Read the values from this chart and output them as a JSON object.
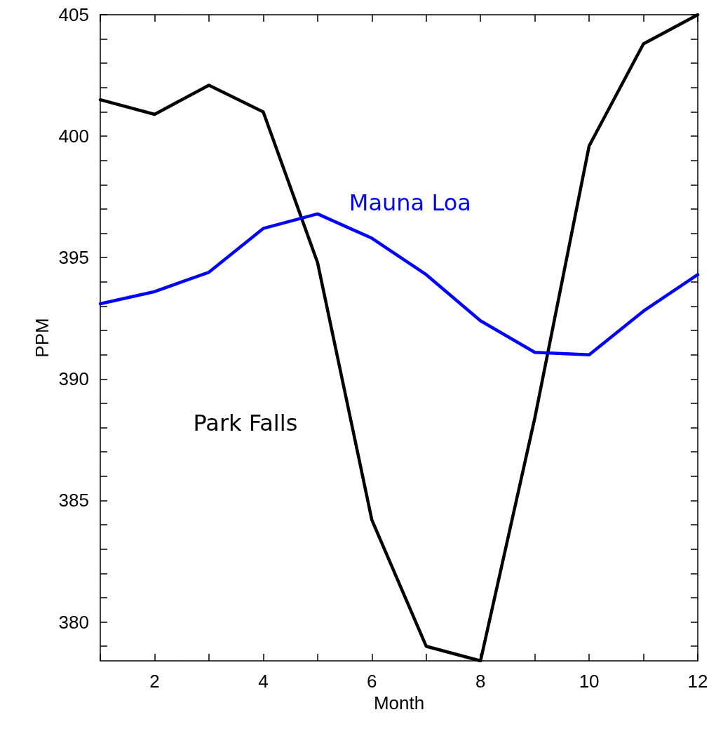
{
  "chart_data": {
    "type": "line",
    "xlabel": "Month",
    "ylabel": "PPM",
    "x": [
      1,
      2,
      3,
      4,
      5,
      6,
      7,
      8,
      9,
      10,
      11,
      12
    ],
    "series": [
      {
        "name": "Park Falls",
        "color": "#000000",
        "values": [
          401.5,
          400.9,
          402.1,
          401.0,
          394.8,
          384.2,
          379.0,
          378.4,
          388.4,
          399.6,
          403.8,
          405.0
        ]
      },
      {
        "name": "Mauna Loa",
        "color": "#0000ff",
        "values": [
          393.1,
          393.6,
          394.4,
          396.2,
          396.8,
          395.8,
          394.3,
          392.4,
          391.1,
          391.0,
          392.8,
          394.3
        ]
      }
    ],
    "xlim": [
      1,
      12
    ],
    "xticks": [
      {
        "value": 1,
        "label": null
      },
      2,
      {
        "value": 3,
        "label": null
      },
      4,
      {
        "value": 5,
        "label": null
      },
      6,
      {
        "value": 7,
        "label": null
      },
      8,
      {
        "value": 9,
        "label": null
      },
      10,
      {
        "value": 11,
        "label": null
      },
      12
    ],
    "ylim": [
      378.4,
      405
    ],
    "yticks": [
      {
        "value": 379,
        "label": null
      },
      380,
      {
        "value": 381,
        "label": null
      },
      {
        "value": 382,
        "label": null
      },
      {
        "value": 383,
        "label": null
      },
      {
        "value": 384,
        "label": null
      },
      385,
      {
        "value": 386,
        "label": null
      },
      {
        "value": 387,
        "label": null
      },
      {
        "value": 388,
        "label": null
      },
      {
        "value": 389,
        "label": null
      },
      390,
      {
        "value": 391,
        "label": null
      },
      {
        "value": 392,
        "label": null
      },
      {
        "value": 393,
        "label": null
      },
      {
        "value": 394,
        "label": null
      },
      395,
      {
        "value": 396,
        "label": null
      },
      {
        "value": 397,
        "label": null
      },
      {
        "value": 398,
        "label": null
      },
      {
        "value": 399,
        "label": null
      },
      400,
      {
        "value": 401,
        "label": null
      },
      {
        "value": 402,
        "label": null
      },
      {
        "value": 403,
        "label": null
      },
      {
        "value": 404,
        "label": null
      },
      405
    ],
    "grid": false,
    "legend": false,
    "marker": "none",
    "line_style": "solid"
  }
}
